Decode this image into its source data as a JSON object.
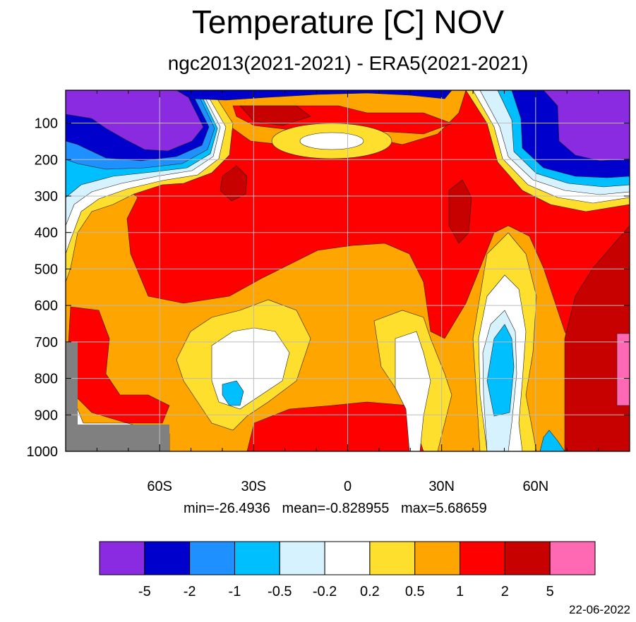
{
  "chart_data": {
    "type": "heatmap",
    "title": "Temperature [C] NOV",
    "subtitle": "ngc2013(2021-2021) - ERA5(2021-2021)",
    "xlabel": "",
    "ylabel": "",
    "x_tick_labels": [
      "60S",
      "30S",
      "0",
      "30N",
      "60N"
    ],
    "x_tick_values": [
      -60,
      -30,
      0,
      30,
      60
    ],
    "xlim": [
      -90,
      90
    ],
    "y_tick_labels": [
      "100",
      "200",
      "300",
      "400",
      "500",
      "600",
      "700",
      "800",
      "900",
      "1000"
    ],
    "y_tick_values": [
      100,
      200,
      300,
      400,
      500,
      600,
      700,
      800,
      900,
      1000
    ],
    "ylim": [
      1000,
      10
    ],
    "y_axis": "pressure (inverted, top = low pressure)",
    "grid": true,
    "stats": {
      "min": "-26.4936",
      "mean": "-0.828955",
      "max": "5.68659"
    },
    "stats_text": "min=-26.4936   mean=-0.828955   max=5.68659",
    "colorbar": {
      "labels": [
        "-5",
        "-2",
        "-1",
        "-0.5",
        "-0.2",
        "0.2",
        "0.5",
        "1",
        "2",
        "5"
      ],
      "colors": [
        "#8a2be2",
        "#0000cd",
        "#1e90ff",
        "#00bfff",
        "#d6f2ff",
        "#ffffff",
        "#ffdf2e",
        "#ffa500",
        "#ff0000",
        "#c70000",
        "#ff69b4"
      ],
      "placement": "bottom"
    },
    "missing_color": "#808080",
    "date": "22-06-2022"
  }
}
